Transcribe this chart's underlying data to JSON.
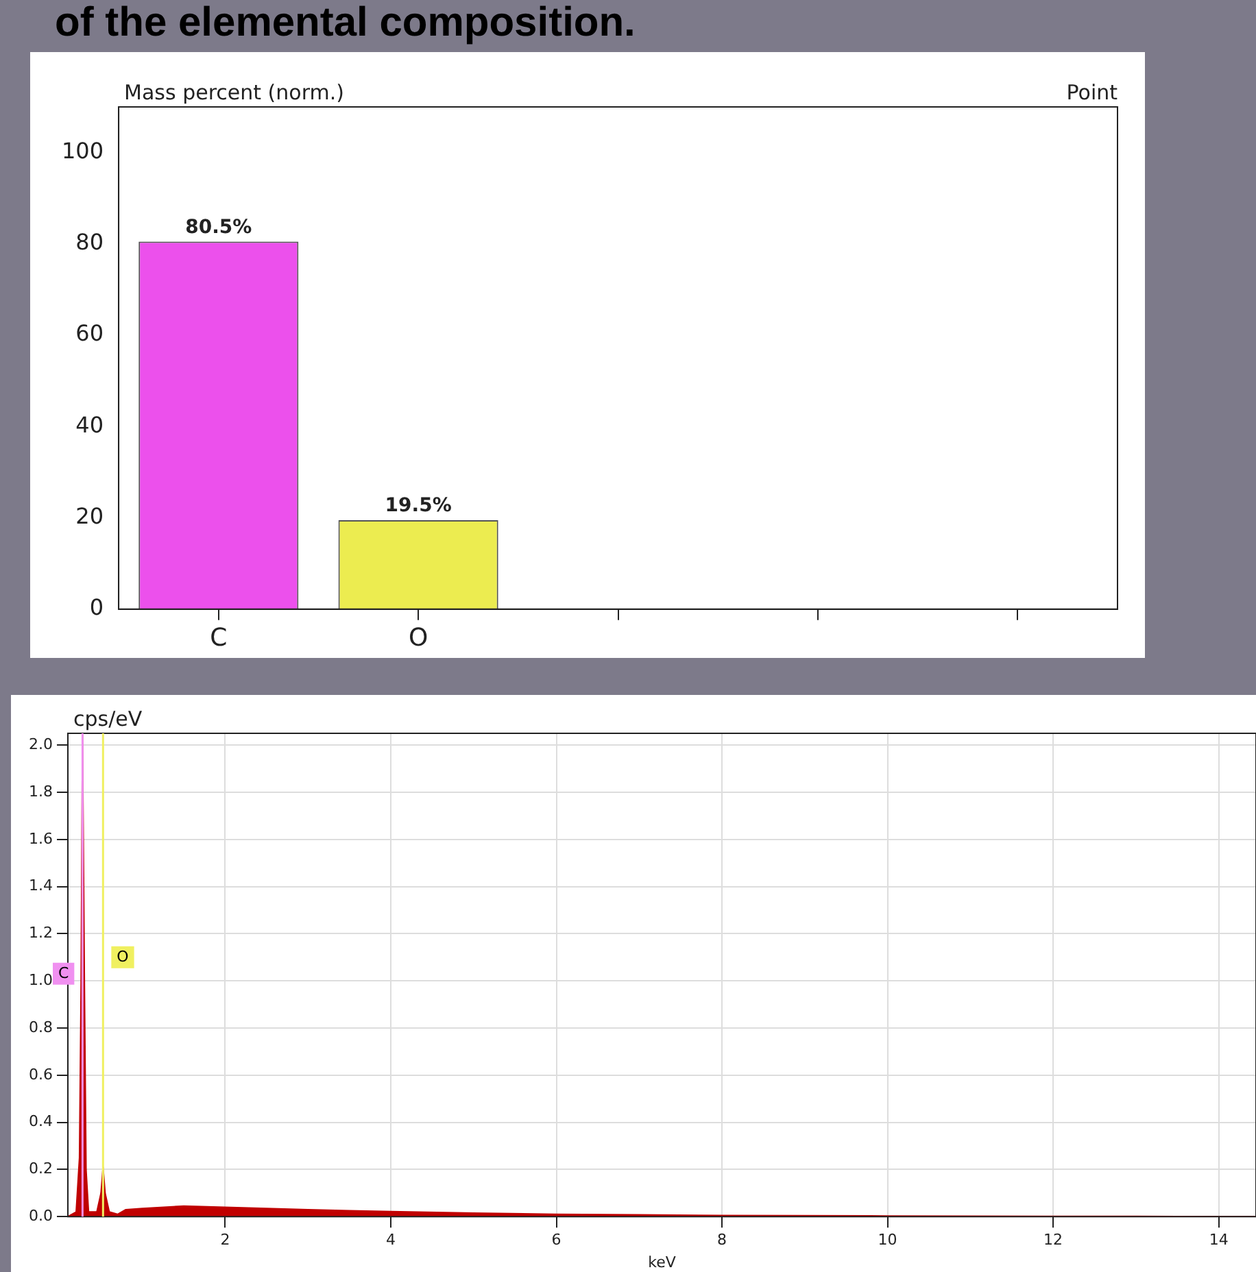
{
  "chart_data": [
    {
      "type": "bar",
      "title": "of the elemental composition.",
      "ylabel": "Mass percent (norm.)",
      "annotations": [
        "Point"
      ],
      "categories": [
        "C",
        "O",
        null,
        null,
        null
      ],
      "values": [
        80.5,
        19.5,
        null,
        null,
        null
      ],
      "colors": [
        "#ec50ec",
        "#ecec50",
        null,
        null,
        null
      ],
      "value_labels": [
        "80.5%",
        "19.5%",
        null,
        null,
        null
      ],
      "ylim": [
        0,
        110
      ],
      "yticks": [
        0,
        20,
        40,
        60,
        80,
        100
      ],
      "grid": false,
      "legend": false
    },
    {
      "type": "area",
      "ylabel": "cps/eV",
      "xlabel": "keV",
      "xlim": [
        0.1,
        14.45
      ],
      "xticks": [
        2,
        4,
        6,
        8,
        10,
        12,
        14
      ],
      "ylim": [
        0,
        2.05
      ],
      "yticks": [
        {
          "value": 0,
          "label": "0.0"
        },
        {
          "value": 0.2,
          "label": "0.2"
        },
        {
          "value": 0.4,
          "label": "0.4"
        },
        {
          "value": 0.6,
          "label": "0.6"
        },
        {
          "value": 0.8,
          "label": "0.8"
        },
        {
          "value": 1,
          "label": "1.0"
        },
        {
          "value": 1.2,
          "label": "1.2"
        },
        {
          "value": 1.4,
          "label": "1.4"
        },
        {
          "value": 1.6,
          "label": "1.6"
        },
        {
          "value": 1.8,
          "label": "1.8"
        },
        {
          "value": 2,
          "label": "2.0"
        }
      ],
      "grid": true,
      "legend": false,
      "series": [
        {
          "color": "#c00000",
          "x": [
            0.1,
            0.2,
            0.24,
            0.26,
            0.277,
            0.3,
            0.32,
            0.35,
            0.45,
            0.5,
            0.525,
            0.55,
            0.6,
            0.7,
            0.8,
            1.0,
            1.5,
            2.0,
            2.5,
            3.0,
            3.5,
            4.0,
            5.0,
            6.0,
            7.0,
            8.0,
            9.0,
            10.0,
            11.0,
            12.0,
            13.0,
            14.0,
            14.45
          ],
          "values": [
            0,
            0.02,
            0.25,
            1.0,
            2.05,
            1.0,
            0.2,
            0.02,
            0.02,
            0.1,
            0.21,
            0.1,
            0.02,
            0.01,
            0.03,
            0.035,
            0.045,
            0.04,
            0.035,
            0.03,
            0.025,
            0.022,
            0.015,
            0.01,
            0.008,
            0.005,
            0.004,
            0.003,
            0.002,
            0.001,
            0.001,
            0,
            0
          ]
        }
      ],
      "ref_lines": [
        {
          "axis": "x",
          "value": 0.277,
          "label": "C",
          "color": "#f090f0"
        },
        {
          "axis": "x",
          "value": 0.525,
          "label": "O",
          "color": "#f0f060"
        }
      ]
    }
  ]
}
